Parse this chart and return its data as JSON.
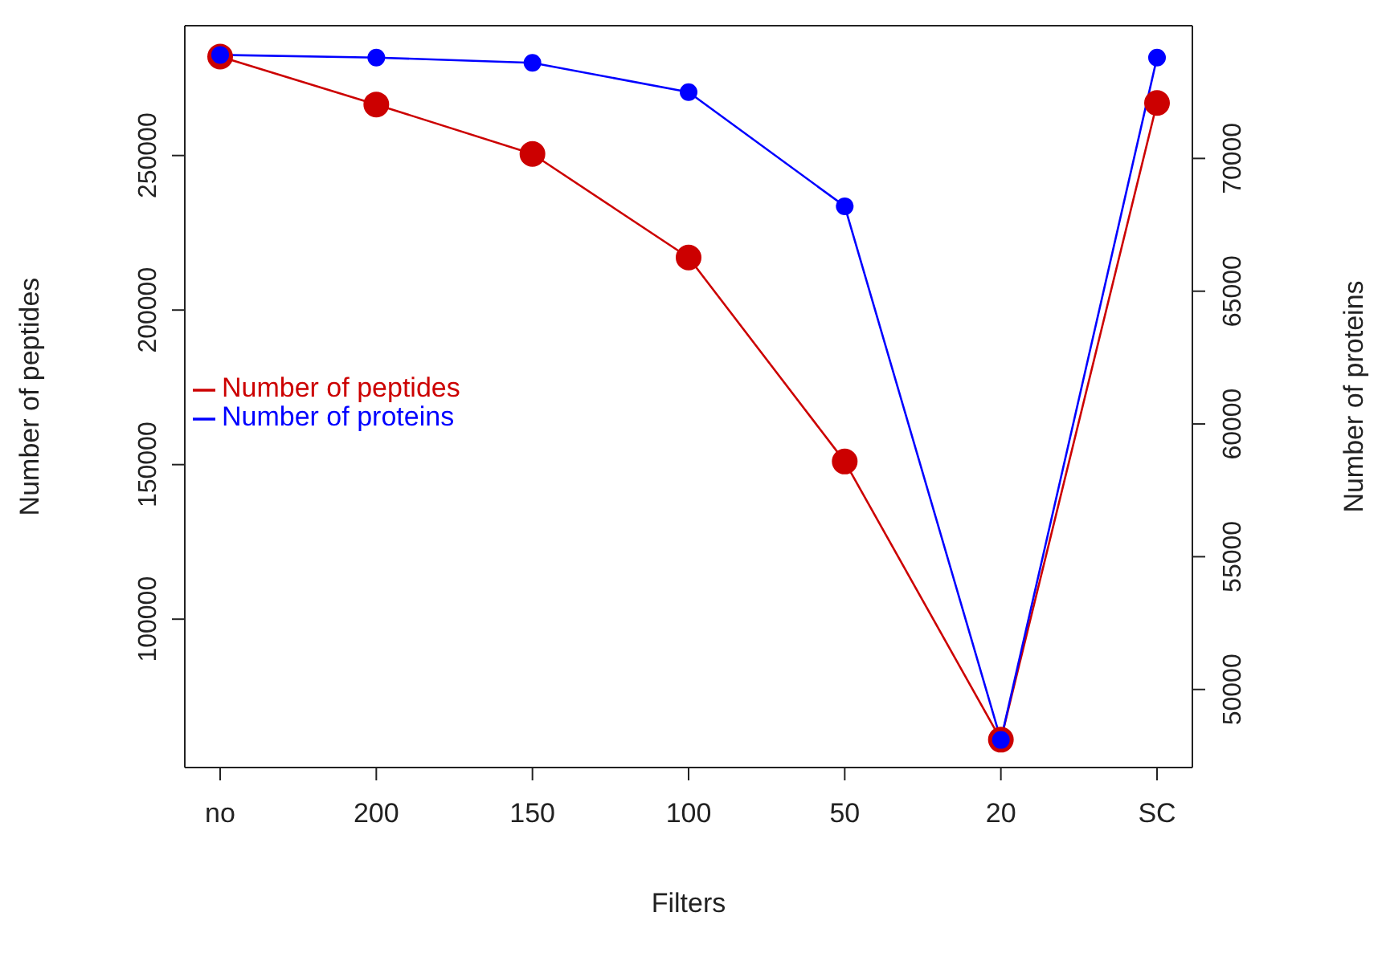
{
  "chart_data": {
    "type": "line",
    "xlabel": "Filters",
    "ylabel": "Number of peptides",
    "y2label": "Number of proteins",
    "categories": [
      "no",
      "200",
      "150",
      "100",
      "50",
      "20",
      "SC"
    ],
    "series": [
      {
        "name": "Number of peptides",
        "color": "#cc0000",
        "values": [
          282000,
          266500,
          250500,
          217000,
          151000,
          61000,
          267000
        ]
      },
      {
        "name": "Number of proteins",
        "color": "#0000ff",
        "axis": "y2",
        "values": [
          73900,
          73800,
          73600,
          72500,
          68200,
          48100,
          73800
        ]
      }
    ],
    "ylim": [
      52000,
      292000
    ],
    "yticks": [
      100000,
      150000,
      200000,
      250000
    ],
    "y2lim": [
      47060,
      75000
    ],
    "y2ticks": [
      50000,
      55000,
      60000,
      65000,
      70000
    ],
    "legend": "left",
    "marker": "circle",
    "grid": false
  }
}
